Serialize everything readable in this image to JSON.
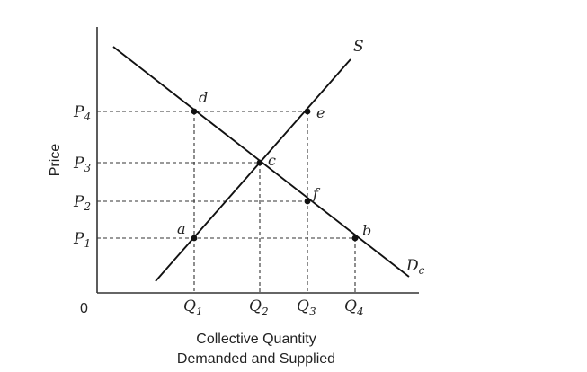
{
  "axes": {
    "y_label": "Price",
    "x_label_line1": "Collective Quantity",
    "x_label_line2": "Demanded and Supplied",
    "origin": "0"
  },
  "price_labels": {
    "p1_base": "P",
    "p1_sub": "1",
    "p2_base": "P",
    "p2_sub": "2",
    "p3_base": "P",
    "p3_sub": "3",
    "p4_base": "P",
    "p4_sub": "4"
  },
  "quantity_labels": {
    "q1_base": "Q",
    "q1_sub": "1",
    "q2_base": "Q",
    "q2_sub": "2",
    "q3_base": "Q",
    "q3_sub": "3",
    "q4_base": "Q",
    "q4_sub": "4"
  },
  "curves": {
    "supply_label": "S",
    "demand_base": "D",
    "demand_sub": "c"
  },
  "points": {
    "a": "a",
    "b": "b",
    "c": "c",
    "d": "d",
    "e": "e",
    "f": "f"
  }
}
